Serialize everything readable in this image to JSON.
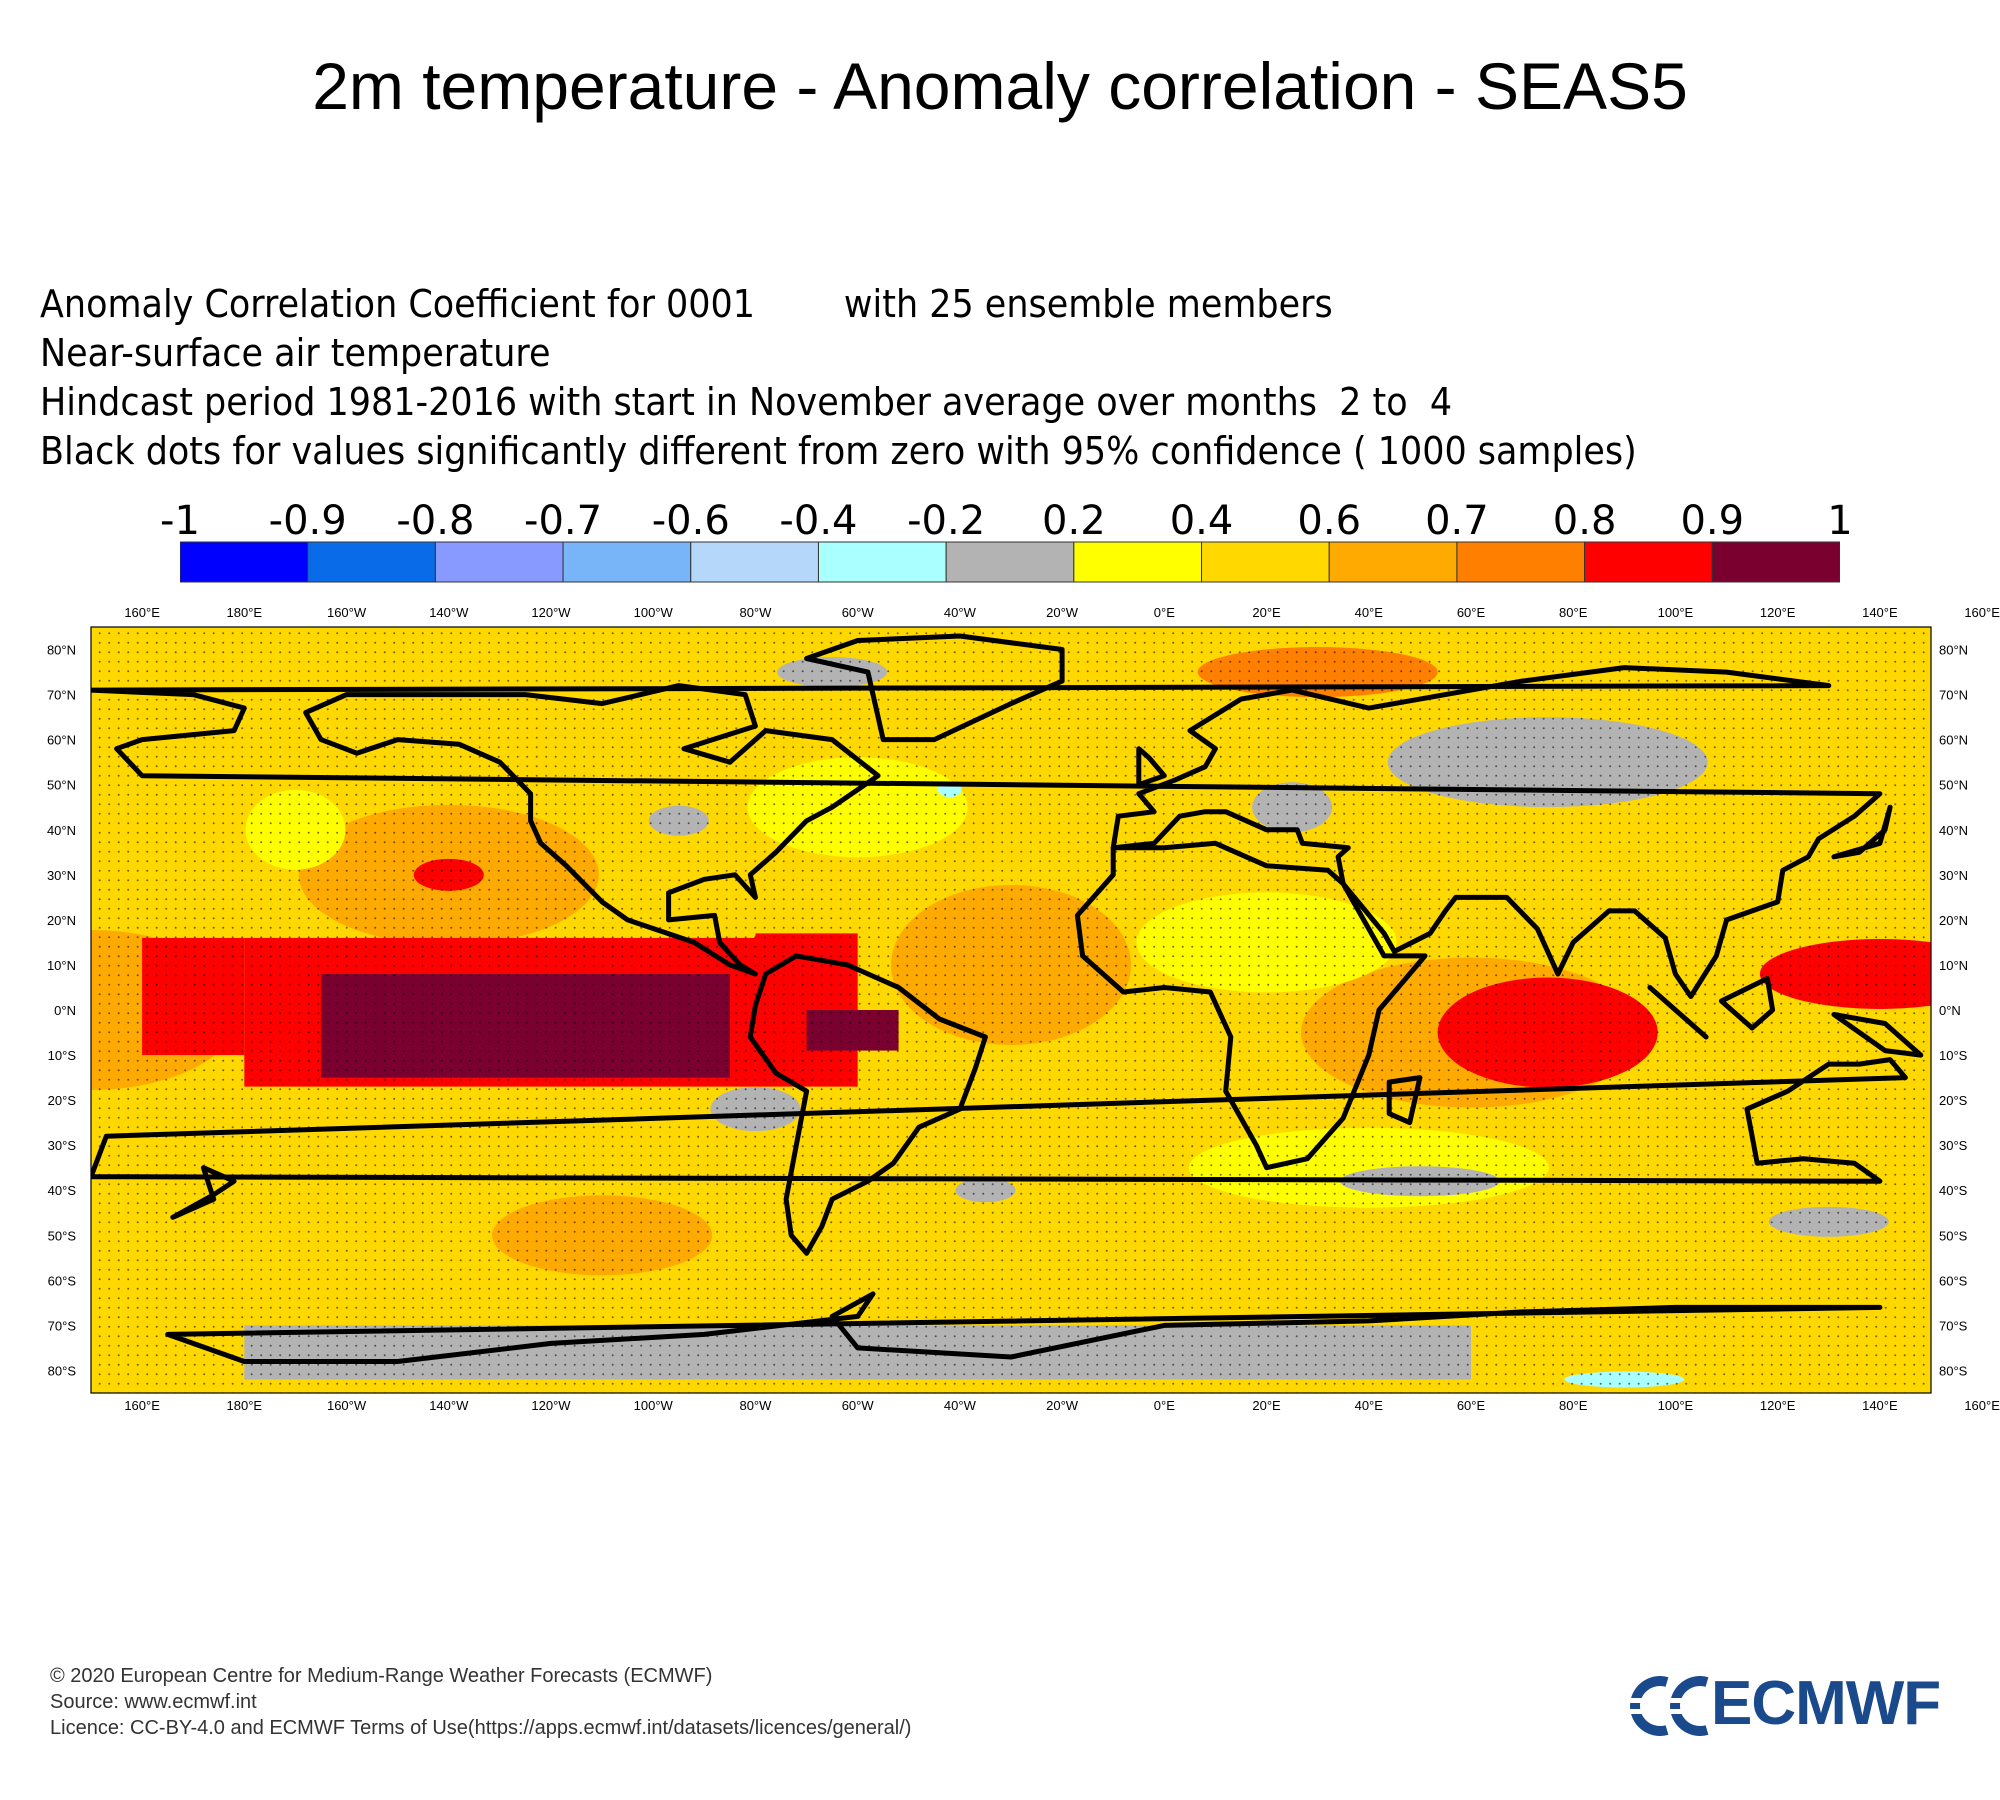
{
  "title": "2m temperature - Anomaly correlation - SEAS5",
  "info_lines": [
    "Anomaly Correlation Coefficient for 0001        with 25 ensemble members",
    "Near-surface air temperature",
    "Hindcast period 1981-2016 with start in November average over months  2 to  4",
    "Black dots for values significantly different from zero with 95% confidence ( 1000 samples)"
  ],
  "colorbar": {
    "labels": [
      "-1",
      "-0.9",
      "-0.8",
      "-0.7",
      "-0.6",
      "-0.4",
      "-0.2",
      "0.2",
      "0.4",
      "0.6",
      "0.7",
      "0.8",
      "0.9",
      "1"
    ],
    "colors": [
      "#0000ff",
      "#0a6be8",
      "#8899ff",
      "#77b5f8",
      "#b5d8fa",
      "#aaffff",
      "#b3b3b3",
      "#ffff00",
      "#ffd800",
      "#ffaa00",
      "#ff7f00",
      "#ff0000",
      "#7a0030"
    ]
  },
  "map": {
    "lon_labels": [
      "160°E",
      "180°E",
      "160°W",
      "140°W",
      "120°W",
      "100°W",
      "80°W",
      "60°W",
      "40°W",
      "20°W",
      "0°E",
      "20°E",
      "40°E",
      "60°E",
      "80°E",
      "100°E",
      "120°E",
      "140°E",
      "160°E"
    ],
    "lat_labels": [
      "80°N",
      "70°N",
      "60°N",
      "50°N",
      "40°N",
      "30°N",
      "20°N",
      "10°N",
      "0°N",
      "10°S",
      "20°S",
      "30°S",
      "40°S",
      "50°S",
      "60°S",
      "70°S",
      "80°S"
    ],
    "lon_values": [
      160,
      180,
      -160,
      -140,
      -120,
      -100,
      -80,
      -60,
      -40,
      -20,
      0,
      20,
      40,
      60,
      80,
      100,
      120,
      140,
      160
    ],
    "lat_values": [
      80,
      70,
      60,
      50,
      40,
      30,
      20,
      10,
      0,
      -10,
      -20,
      -30,
      -40,
      -50,
      -60,
      -70,
      -80
    ],
    "lon_range": [
      150,
      510
    ],
    "lat_range": [
      -85,
      85
    ]
  },
  "footer": {
    "line1": "© 2020 European Centre for Medium-Range Weather Forecasts (ECMWF)",
    "line2": "Source: www.ecmwf.int",
    "line3": "Licence: CC-BY-4.0 and ECMWF Terms of Use(https://apps.ecmwf.int/datasets/licences/general/)"
  },
  "logo": {
    "text": "ECMWF",
    "color": "#1a4a8c"
  }
}
